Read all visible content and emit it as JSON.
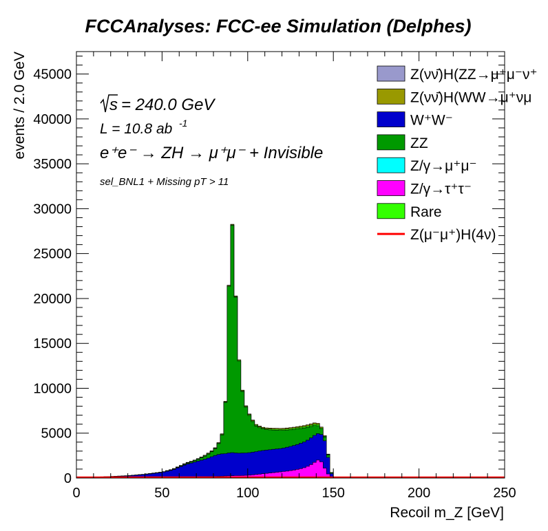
{
  "chart_data": {
    "type": "area",
    "stacked": true,
    "title": "FCCAnalyses: FCC-ee Simulation (Delphes)",
    "xlabel": "Recoil m_Z [GeV]",
    "ylabel": "events / 2.0 GeV",
    "xlim": [
      0,
      250
    ],
    "ylim": [
      0,
      47500
    ],
    "bin_width": 2,
    "xticks": [
      0,
      50,
      100,
      150,
      200,
      250
    ],
    "yticks": [
      0,
      5000,
      10000,
      15000,
      20000,
      25000,
      30000,
      35000,
      40000,
      45000
    ],
    "grid": false,
    "legend_position": "top-right",
    "annotations": {
      "sqrt_s": "= 240.0 GeV",
      "lumi": "L = 10.8 ab",
      "lumi_exp": "-1",
      "process": "e⁺e⁻ → ZH → μ⁺μ⁻ + Invisible",
      "selection": "sel_BNL1 + Missing pT > 11"
    },
    "legend": [
      {
        "label": "Z(νν̄)H(ZZ→μ⁺μ⁻ν⁺",
        "color": "#9999cc",
        "kind": "fill"
      },
      {
        "label": "Z(νν̄)H(WW→μ⁺νμ",
        "color": "#999900",
        "kind": "fill"
      },
      {
        "label": "W⁺W⁻",
        "color": "#0000cc",
        "kind": "fill"
      },
      {
        "label": "ZZ",
        "color": "#009900",
        "kind": "fill"
      },
      {
        "label": "Z/γ→μ⁺μ⁻",
        "color": "#00ffff",
        "kind": "fill"
      },
      {
        "label": "Z/γ→τ⁺τ⁻",
        "color": "#ff00ff",
        "kind": "fill"
      },
      {
        "label": "Rare",
        "color": "#33ff00",
        "kind": "fill"
      },
      {
        "label": "Z(μ⁻μ⁺)H(4ν)",
        "color": "#ff0000",
        "kind": "line"
      }
    ],
    "series": [
      {
        "name": "Z/γ→τ⁺τ⁻",
        "color": "#ff00ff",
        "x": [
          0,
          10,
          20,
          30,
          40,
          50,
          60,
          70,
          80,
          90,
          100,
          110,
          120,
          126,
          130,
          134,
          136,
          138,
          140,
          142,
          144,
          146,
          148,
          150
        ],
        "values": [
          0,
          0,
          30,
          40,
          50,
          80,
          100,
          130,
          150,
          250,
          300,
          500,
          700,
          850,
          1000,
          1200,
          1400,
          1600,
          1900,
          2100,
          1500,
          700,
          200,
          0
        ]
      },
      {
        "name": "W⁺W⁻",
        "color": "#0000cc",
        "x": [
          0,
          10,
          20,
          30,
          40,
          50,
          56,
          60,
          64,
          70,
          74,
          76,
          80,
          84,
          88,
          90,
          94,
          100,
          110,
          120,
          130,
          134,
          138,
          140,
          142,
          144,
          146,
          148,
          150
        ],
        "values": [
          40,
          80,
          130,
          200,
          350,
          550,
          800,
          1100,
          1400,
          1700,
          1900,
          2000,
          2300,
          2500,
          2500,
          2600,
          2500,
          2500,
          2600,
          2600,
          2800,
          2900,
          3000,
          3000,
          2900,
          3200,
          2900,
          800,
          0
        ]
      },
      {
        "name": "ZZ",
        "color": "#009900",
        "x": [
          0,
          50,
          60,
          70,
          74,
          76,
          80,
          82,
          84,
          86,
          88,
          90,
          92,
          94,
          96,
          98,
          100,
          102,
          104,
          106,
          110,
          120,
          130,
          134,
          138,
          140,
          144,
          148,
          150
        ],
        "values": [
          0,
          0,
          50,
          150,
          300,
          400,
          600,
          900,
          1500,
          2700,
          8700,
          28400,
          22200,
          12500,
          8000,
          5700,
          4500,
          3800,
          3000,
          2700,
          2300,
          2000,
          1700,
          1500,
          1200,
          1000,
          500,
          200,
          0
        ]
      },
      {
        "name": "Rare",
        "color": "#33ff00",
        "x": [
          0,
          50,
          100,
          140,
          150
        ],
        "values": [
          0,
          20,
          80,
          150,
          0
        ]
      },
      {
        "name": "Z(νν̄)H(WW→μ⁺νμ",
        "color": "#999900",
        "x": [
          0,
          50,
          100,
          130,
          140,
          150
        ],
        "values": [
          0,
          30,
          80,
          120,
          150,
          0
        ]
      }
    ],
    "overlay": {
      "name": "Z(μ⁻μ⁺)H(4ν)",
      "color": "#ff0000",
      "x": [
        0,
        250
      ],
      "values": [
        0,
        0
      ]
    }
  }
}
